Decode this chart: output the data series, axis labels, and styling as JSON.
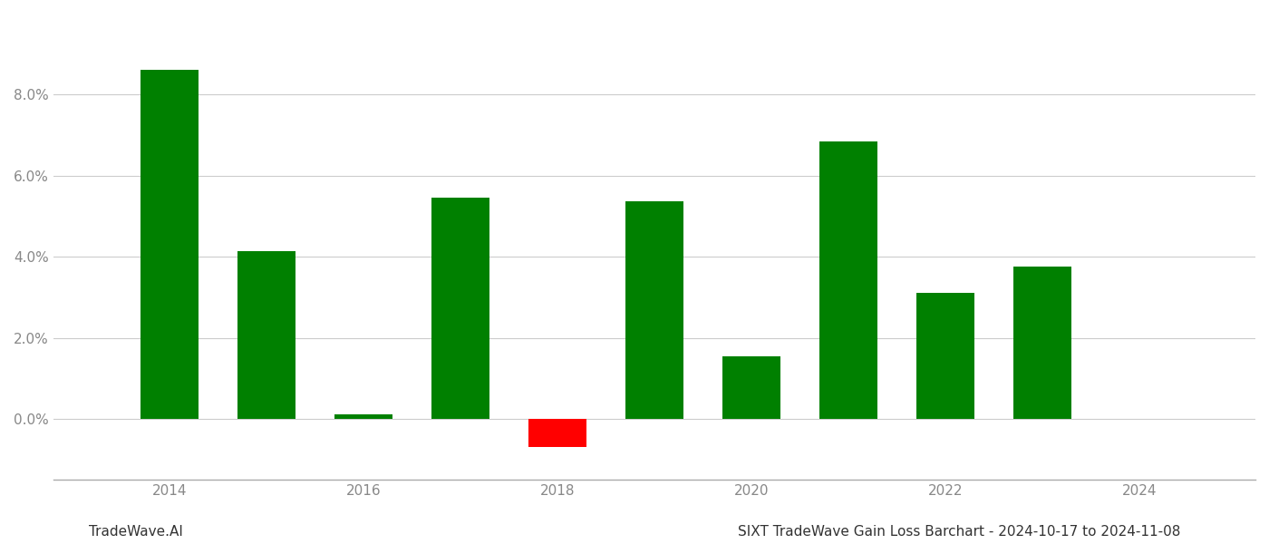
{
  "years": [
    2014,
    2015,
    2016,
    2017,
    2018,
    2019,
    2020,
    2021,
    2022,
    2023
  ],
  "values": [
    0.0862,
    0.0415,
    0.0012,
    0.0545,
    -0.007,
    0.0538,
    0.0155,
    0.0685,
    0.031,
    0.0375
  ],
  "colors_positive": "#008000",
  "colors_negative": "#ff0000",
  "footer_left": "TradeWave.AI",
  "footer_right": "SIXT TradeWave Gain Loss Barchart - 2024-10-17 to 2024-11-08",
  "ylim_min": -0.015,
  "ylim_max": 0.1,
  "xlim_min": 2012.8,
  "xlim_max": 2025.2,
  "background_color": "#ffffff",
  "grid_color": "#cccccc",
  "tick_label_color": "#888888",
  "bar_width": 0.6,
  "tick_years": [
    2014,
    2016,
    2018,
    2020,
    2022,
    2024
  ],
  "yticks": [
    0.0,
    0.02,
    0.04,
    0.06,
    0.08
  ]
}
